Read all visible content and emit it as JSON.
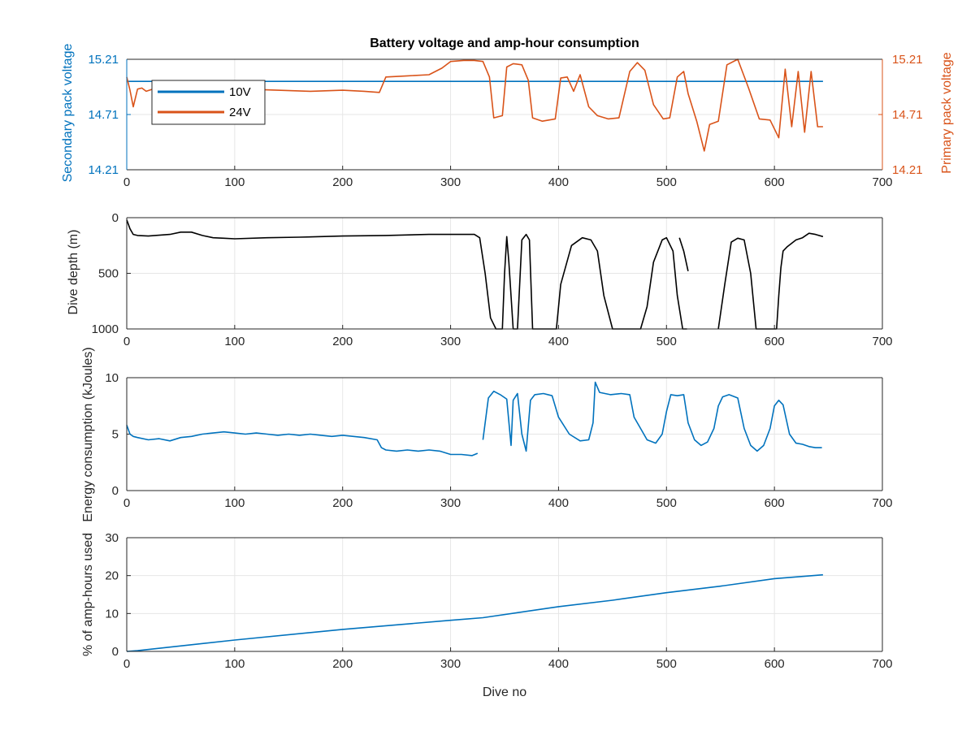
{
  "colors": {
    "blue": "#0072BD",
    "orange": "#D95319",
    "black": "#000000",
    "axis": "#262626",
    "grid": "#e6e6e6"
  },
  "chart_data": [
    {
      "type": "line",
      "title": "Battery voltage and amp-hour consumption",
      "xlabel": "",
      "ylabel_left": "Secondary pack voltage",
      "ylabel_right": "Primary pack voltage",
      "xlim": [
        0,
        700
      ],
      "ylim": [
        14.21,
        15.21
      ],
      "x_ticks": [
        "0",
        "100",
        "200",
        "300",
        "400",
        "500",
        "600",
        "700"
      ],
      "y_ticks_left": [
        "14.21",
        "14.71",
        "15.21"
      ],
      "y_ticks_right": [
        "14.21",
        "14.71",
        "15.21"
      ],
      "grid": true,
      "legend": {
        "placement": "top-left",
        "entries": [
          "10V",
          "24V"
        ]
      },
      "series": [
        {
          "name": "10V",
          "axis": "left",
          "color": "#0072BD",
          "x": [
            0,
            645
          ],
          "y": [
            15.01,
            15.01
          ]
        },
        {
          "name": "24V",
          "axis": "right",
          "color": "#D95319",
          "x": [
            0,
            3,
            6,
            10,
            14,
            18,
            24,
            30,
            40,
            55,
            70,
            90,
            110,
            140,
            170,
            200,
            220,
            234,
            240,
            260,
            280,
            292,
            300,
            312,
            322,
            330,
            336,
            340,
            348,
            352,
            358,
            366,
            372,
            376,
            385,
            397,
            402,
            408,
            414,
            420,
            428,
            436,
            446,
            456,
            466,
            473,
            480,
            488,
            497,
            503,
            510,
            516,
            520,
            528,
            535,
            540,
            548,
            556,
            566,
            576,
            586,
            596,
            604,
            610,
            616,
            622,
            628,
            634,
            640,
            645
          ],
          "y": [
            15.05,
            14.93,
            14.78,
            14.94,
            14.95,
            14.92,
            14.94,
            14.93,
            14.95,
            14.96,
            14.94,
            14.95,
            14.94,
            14.93,
            14.92,
            14.93,
            14.92,
            14.91,
            15.05,
            15.06,
            15.07,
            15.13,
            15.19,
            15.2,
            15.2,
            15.19,
            15.05,
            14.68,
            14.7,
            15.14,
            15.17,
            15.16,
            15.02,
            14.68,
            14.65,
            14.67,
            15.04,
            15.05,
            14.92,
            15.07,
            14.78,
            14.7,
            14.67,
            14.68,
            15.1,
            15.18,
            15.11,
            14.8,
            14.67,
            14.68,
            15.05,
            15.1,
            14.9,
            14.65,
            14.38,
            14.62,
            14.65,
            15.16,
            15.21,
            14.95,
            14.67,
            14.66,
            14.5,
            15.12,
            14.6,
            15.1,
            14.55,
            15.1,
            14.6,
            14.6
          ]
        }
      ]
    },
    {
      "type": "line",
      "title": "",
      "xlabel": "",
      "ylabel": "Dive depth (m)",
      "xlim": [
        0,
        700
      ],
      "ylim": [
        1000,
        0
      ],
      "x_ticks": [
        "0",
        "100",
        "200",
        "300",
        "400",
        "500",
        "600",
        "700"
      ],
      "y_ticks": [
        "0",
        "500",
        "1000"
      ],
      "grid": true,
      "series": [
        {
          "color": "#000000",
          "x": [
            0,
            3,
            6,
            10,
            20,
            40,
            50,
            60,
            70,
            80,
            90,
            100,
            130,
            160,
            200,
            240,
            280,
            300,
            322,
            327,
            332,
            337,
            342,
            348,
            350,
            352,
            354,
            358,
            362,
            366,
            370,
            373,
            376,
            380,
            392,
            398,
            402,
            412,
            422,
            430,
            436,
            442,
            450,
            458,
            468,
            476,
            482,
            488,
            496,
            500,
            506,
            510,
            515,
            519
          ],
          "y": [
            20,
            100,
            150,
            160,
            165,
            150,
            130,
            130,
            160,
            180,
            185,
            190,
            180,
            175,
            165,
            160,
            150,
            150,
            150,
            180,
            500,
            900,
            1000,
            1000,
            500,
            170,
            400,
            1000,
            1000,
            200,
            150,
            200,
            1000,
            1000,
            1000,
            1000,
            600,
            250,
            180,
            200,
            300,
            700,
            1000,
            1000,
            1000,
            1000,
            800,
            400,
            200,
            180,
            300,
            700,
            1000,
            1000
          ]
        },
        {
          "color": "#000000",
          "x": [
            512,
            516,
            520
          ],
          "y": [
            180,
            300,
            480
          ]
        },
        {
          "color": "#000000",
          "x": [
            548,
            554,
            560,
            566,
            572,
            578,
            583,
            590,
            598,
            602
          ],
          "y": [
            1000,
            600,
            220,
            185,
            200,
            500,
            1000,
            1000,
            1000,
            1000
          ]
        },
        {
          "color": "#000000",
          "x": [
            602,
            604,
            606,
            608,
            612,
            616,
            620,
            626,
            632,
            638,
            645
          ],
          "y": [
            1000,
            700,
            450,
            300,
            260,
            230,
            200,
            180,
            140,
            150,
            170
          ]
        }
      ]
    },
    {
      "type": "line",
      "title": "",
      "xlabel": "",
      "ylabel": "Energy consumption (kJoules)",
      "xlim": [
        0,
        700
      ],
      "ylim": [
        0,
        10
      ],
      "x_ticks": [
        "0",
        "100",
        "200",
        "300",
        "400",
        "500",
        "600",
        "700"
      ],
      "y_ticks": [
        "0",
        "5",
        "10"
      ],
      "grid": true,
      "series": [
        {
          "color": "#0072BD",
          "x": [
            0,
            3,
            6,
            10,
            20,
            30,
            40,
            50,
            60,
            70,
            80,
            90,
            100,
            110,
            120,
            130,
            140,
            150,
            160,
            170,
            180,
            190,
            200,
            210,
            220,
            232,
            236,
            240,
            250,
            260,
            270,
            280,
            290,
            300,
            310,
            320,
            325
          ],
          "y": [
            5.8,
            5.0,
            4.8,
            4.7,
            4.5,
            4.6,
            4.4,
            4.7,
            4.8,
            5.0,
            5.1,
            5.2,
            5.1,
            5.0,
            5.1,
            5.0,
            4.9,
            5.0,
            4.9,
            5.0,
            4.9,
            4.8,
            4.9,
            4.8,
            4.7,
            4.5,
            3.8,
            3.6,
            3.5,
            3.6,
            3.5,
            3.6,
            3.5,
            3.2,
            3.2,
            3.1,
            3.3
          ]
        },
        {
          "color": "#0072BD",
          "x": [
            330,
            335,
            340,
            346,
            352,
            356,
            358,
            362,
            366,
            370,
            374,
            378,
            386,
            394,
            400,
            410,
            420,
            428,
            432,
            434,
            438,
            448,
            458,
            466,
            470,
            476,
            482,
            490,
            496,
            500,
            504,
            510,
            516,
            520,
            526,
            532,
            538,
            544,
            548,
            552,
            558,
            566,
            572,
            578,
            584,
            590,
            596,
            600,
            604,
            608,
            614,
            620,
            626,
            632,
            638,
            644
          ],
          "y": [
            4.5,
            8.2,
            8.8,
            8.5,
            8.1,
            4.0,
            8.0,
            8.6,
            5.0,
            3.5,
            8.0,
            8.5,
            8.6,
            8.4,
            6.5,
            5.0,
            4.4,
            4.5,
            6.0,
            9.6,
            8.7,
            8.5,
            8.6,
            8.5,
            6.5,
            5.5,
            4.5,
            4.2,
            5.0,
            7.0,
            8.5,
            8.4,
            8.5,
            6.0,
            4.5,
            4.0,
            4.3,
            5.5,
            7.5,
            8.3,
            8.5,
            8.2,
            5.5,
            4.0,
            3.5,
            4.0,
            5.5,
            7.5,
            8.0,
            7.6,
            5.0,
            4.2,
            4.1,
            3.9,
            3.8,
            3.8
          ]
        }
      ]
    },
    {
      "type": "line",
      "title": "",
      "xlabel": "Dive no",
      "ylabel": "% of amp-hours used",
      "xlim": [
        0,
        700
      ],
      "ylim": [
        0,
        30
      ],
      "x_ticks": [
        "0",
        "100",
        "200",
        "300",
        "400",
        "500",
        "600",
        "700"
      ],
      "y_ticks": [
        "0",
        "10",
        "20",
        "30"
      ],
      "grid": true,
      "series": [
        {
          "color": "#0072BD",
          "x": [
            0,
            10,
            100,
            200,
            300,
            330,
            400,
            450,
            500,
            550,
            600,
            645
          ],
          "y": [
            0,
            0.2,
            3.0,
            5.8,
            8.2,
            8.9,
            11.8,
            13.5,
            15.5,
            17.2,
            19.2,
            20.2
          ]
        }
      ]
    }
  ]
}
